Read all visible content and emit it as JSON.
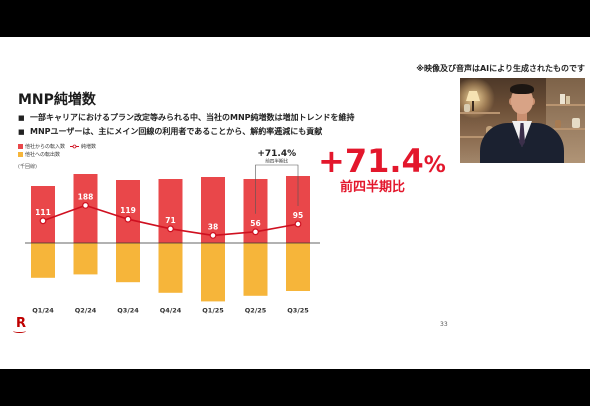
{
  "disclaimer": "※映像及び音声はAIにより生成されたものです",
  "slide": {
    "title": "MNP純増数",
    "bullet_marker": "■",
    "bullets": [
      "一部キャリアにおけるプラン改定等みられる中、当社のMNP純増数は増加トレンドを維持",
      "MNPユーザーは、主にメイン回線の利用者であることから、解約率逓減にも貢献"
    ],
    "highlight": {
      "number": "+71.4",
      "suffix": "%",
      "caption": "前四半期比"
    },
    "page_number": "33",
    "logo": "R"
  },
  "colors": {
    "accent": "#e3172c",
    "text": "#1e1e1e",
    "letterbox": "#000000"
  },
  "chart_data": {
    "type": "bar",
    "categories": [
      "Q1/24",
      "Q2/24",
      "Q3/24",
      "Q4/24",
      "Q1/25",
      "Q2/25",
      "Q3/25"
    ],
    "ylabel": "(千回線)",
    "legend": "top-left",
    "grid": false,
    "series": [
      {
        "name": "他社からの転入数",
        "type": "bar",
        "color": "#e9474a",
        "values": [
          285,
          345,
          315,
          320,
          330,
          320,
          335
        ]
      },
      {
        "name": "他社への転出数",
        "type": "bar",
        "color": "#f6b53a",
        "values": [
          -174,
          -157,
          -196,
          -249,
          -292,
          -264,
          -240
        ]
      },
      {
        "name": "純増数",
        "type": "line",
        "color": "#cf1020",
        "values": [
          111,
          188,
          119,
          71,
          38,
          56,
          95
        ]
      }
    ],
    "annotation": {
      "text": "+71.4%",
      "subtext": "前四半期比",
      "between": [
        "Q2/25",
        "Q3/25"
      ]
    }
  }
}
